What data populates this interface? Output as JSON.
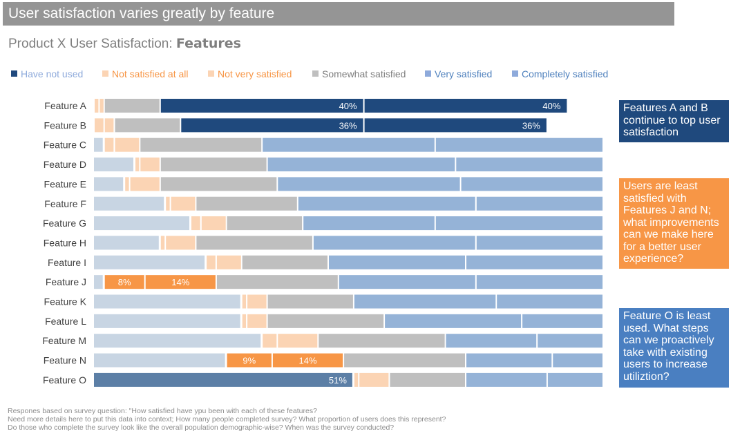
{
  "banner": {
    "title": "User satisfaction varies greatly by feature"
  },
  "subtitle": {
    "prefix": "Product X User Satisfaction: ",
    "emphasis": "Features"
  },
  "legend": [
    {
      "label": "Have not used",
      "swatch": "#1f497d",
      "text_color": "#8eaadb"
    },
    {
      "label": "Not satisfied at all",
      "swatch": "#fbd4b4",
      "text_color": "#f79646"
    },
    {
      "label": "Not very satisfied",
      "swatch": "#fbd4b4",
      "text_color": "#f79646"
    },
    {
      "label": "Somewhat satisfied",
      "swatch": "#bfbfbf",
      "text_color": "#7f7f7f"
    },
    {
      "label": "Very satisfied",
      "swatch": "#8eaadb",
      "text_color": "#4f81bd"
    },
    {
      "label": "Completely satisfied",
      "swatch": "#8eaadb",
      "text_color": "#4f81bd"
    }
  ],
  "chart_data": {
    "type": "bar",
    "orientation": "horizontal",
    "stacked": true,
    "categories": [
      "Feature A",
      "Feature B",
      "Feature C",
      "Feature D",
      "Feature E",
      "Feature F",
      "Feature G",
      "Feature H",
      "Feature I",
      "Feature J",
      "Feature K",
      "Feature L",
      "Feature M",
      "Feature N",
      "Feature O"
    ],
    "series": [
      {
        "name": "Have not used",
        "values": [
          0,
          0,
          2,
          8,
          6,
          14,
          19,
          13,
          22,
          2,
          29,
          29,
          33,
          26,
          51
        ]
      },
      {
        "name": "Not satisfied at all",
        "values": [
          1,
          2,
          2,
          1,
          1,
          1,
          2,
          1,
          2,
          8,
          1,
          1,
          3,
          9,
          1
        ]
      },
      {
        "name": "Not very satisfied",
        "values": [
          1,
          2,
          5,
          4,
          6,
          5,
          5,
          6,
          5,
          14,
          4,
          4,
          8,
          14,
          6
        ]
      },
      {
        "name": "Somewhat satisfied",
        "values": [
          11,
          13,
          24,
          21,
          23,
          20,
          15,
          23,
          17,
          24,
          17,
          23,
          25,
          24,
          15
        ]
      },
      {
        "name": "Very satisfied",
        "values": [
          40,
          36,
          34,
          37,
          36,
          35,
          26,
          32,
          27,
          27,
          28,
          27,
          18,
          17,
          16
        ]
      },
      {
        "name": "Completely satisfied",
        "values": [
          40,
          36,
          33,
          29,
          28,
          25,
          33,
          25,
          27,
          25,
          21,
          16,
          13,
          10,
          11
        ]
      }
    ],
    "data_labels": [
      {
        "row": 0,
        "series": 4,
        "text": "40%"
      },
      {
        "row": 0,
        "series": 5,
        "text": "40%"
      },
      {
        "row": 1,
        "series": 4,
        "text": "36%"
      },
      {
        "row": 1,
        "series": 5,
        "text": "36%"
      },
      {
        "row": 9,
        "series": 1,
        "text": "8%"
      },
      {
        "row": 9,
        "series": 2,
        "text": "14%"
      },
      {
        "row": 13,
        "series": 1,
        "text": "9%"
      },
      {
        "row": 13,
        "series": 2,
        "text": "14%"
      },
      {
        "row": 14,
        "series": 0,
        "text": "51%"
      }
    ],
    "highlight_rows": [
      0,
      1,
      9,
      13,
      14
    ],
    "colors": {
      "muted": [
        "#c8d5e3",
        "#fbd4b4",
        "#fbd4b4",
        "#bfbfbf",
        "#95b3d7",
        "#95b3d7"
      ],
      "row_a_b": [
        "#c8d5e3",
        "#fbd4b4",
        "#fbd4b4",
        "#bfbfbf",
        "#1f497d",
        "#1f497d"
      ],
      "row_j_n": [
        "#c8d5e3",
        "#f79646",
        "#f79646",
        "#bfbfbf",
        "#95b3d7",
        "#95b3d7"
      ],
      "row_o": [
        "#5c7fa6",
        "#fbd4b4",
        "#fbd4b4",
        "#bfbfbf",
        "#95b3d7",
        "#95b3d7"
      ]
    },
    "legend_position": "top",
    "xlim": [
      0,
      100
    ],
    "grid": false
  },
  "callouts": [
    {
      "text": "Features A and B continue to top user satisfaction",
      "color": "#1f497d"
    },
    {
      "text": "Users are least satisfied with Features J and N; what improvements can we make here for a better user experience?",
      "color": "#f79646"
    },
    {
      "text": "Feature O is least used. What steps can we proactively take with existing users to increase utiliztion?",
      "color": "#4a7fc1"
    }
  ],
  "footnote": [
    "Respones based on survey question: \"How satisfied have ypu been with each of these features?",
    "Need more details here to put this data into context; How many people completed survey? What proportion of users does this represent?",
    "Do those who complete the survey look like the overall population demographic-wise? When was the survey conducted?"
  ]
}
